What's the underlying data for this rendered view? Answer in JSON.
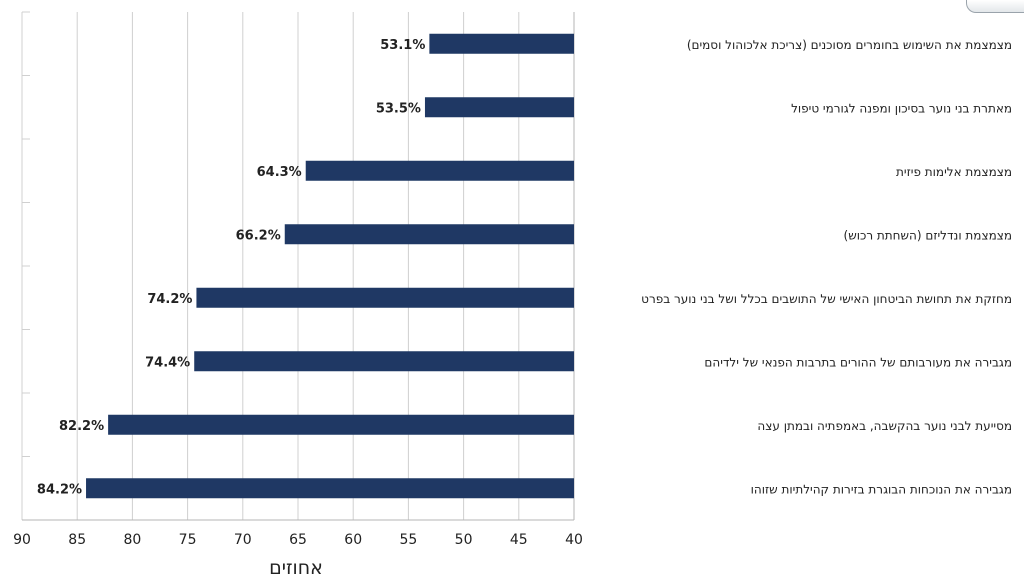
{
  "chart_data": {
    "type": "bar",
    "orientation": "horizontal",
    "x_reversed": true,
    "categories": [
      "מצמצמת את השימוש בחומרים מסוכנים (צריכת אלכוהול וסמים)",
      "מאתרת בני נוער בסיכון ומפנה לגורמי טיפול",
      "מצמצמת אלימות פיזית",
      "מצמצמת ונדליזם (השחתת רכוש)",
      "מחזקת את תחושת הביטחון האישי של התושבים בכלל ושל בני נוער בפרט",
      "מגבירה את מעורבותם של ההורים בתרבות הפנאי של ילדיהם",
      "מסייעת לבני נוער בהקשבה, באמפתיה ובמתן עצה",
      "מגבירה את הנוכחות הבוגרת בזירות קהילתיות שזוהו"
    ],
    "values": [
      53.1,
      53.5,
      64.3,
      66.2,
      74.2,
      74.4,
      82.2,
      84.2
    ],
    "data_labels": [
      "53.1%",
      "53.5%",
      "64.3%",
      "66.2%",
      "74.2%",
      "74.4%",
      "82.2%",
      "84.2%"
    ],
    "xlim": [
      40,
      90
    ],
    "x_ticks": [
      "90",
      "85",
      "80",
      "75",
      "70",
      "65",
      "60",
      "55",
      "50",
      "45",
      "40"
    ],
    "xlabel": "אחוזים",
    "grid": "vertical",
    "bar_color": "#1f3864",
    "grid_color": "#d0d0d0"
  }
}
